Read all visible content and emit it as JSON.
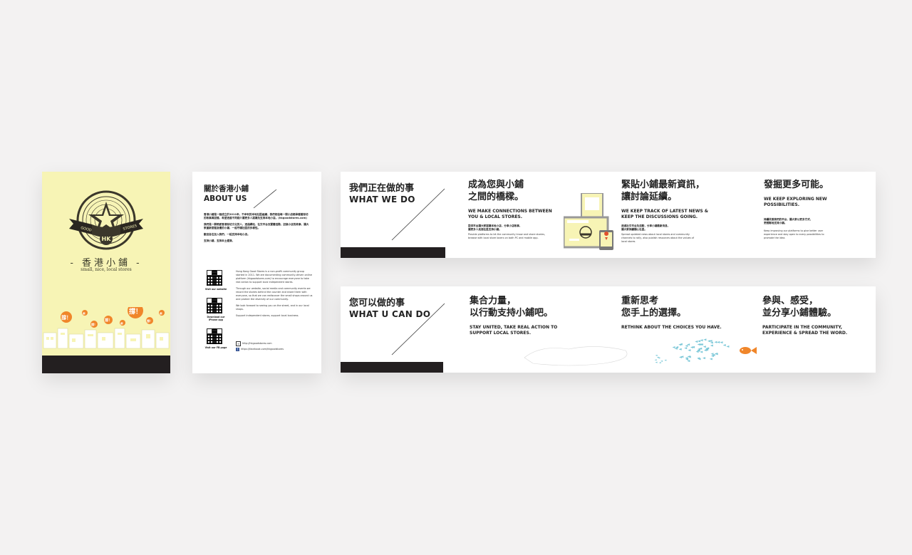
{
  "cover": {
    "emblem_text_left": "GOOD",
    "emblem_text_right": "STORES",
    "emblem_center": "HK",
    "name_zh": "- 香港小鋪 -",
    "name_en": "small, nice, local stores",
    "bubbles": [
      "撐！",
      "撐！",
      "撐！",
      "撐！",
      "撐！",
      "撐！",
      "撐！",
      "撐！"
    ]
  },
  "about": {
    "title_zh": "關於香港小鋪",
    "title_en": "ABOUT US",
    "zh_paragraphs": [
      "香港小鋪是一個成立於2011年，不牟利的本地社區組織，我們相信每一間小店都承載着街坊的故事與回憶，希望透過不同媒介讓更多人認識及支持本地小店。(hkgoodstores.com)",
      "我們是一群熱愛香港街坊文化的人，透過網站、社交平台及實體活動，記錄小店的故事，讓大家重新發掘身邊的小鋪，一起守護社區的多樣性。",
      "歡迎各位加入我們，一起支持本地小店。",
      "支持小鋪，支持本土經濟。"
    ],
    "en_paragraphs": [
      "Hong Kong Good Stores is a non-profit community group started in 2011. We are documenting community-driven online platform (hkgoodstores.com) to encourage everyone to take real action to support local independent stores.",
      "Through our website, social media and community events we record the stories behind the counter and share them with everyone, so that we can rediscover the small shops around us and protect the diversity of our community.",
      "We look forward to seeing you on the street, and in our local shops.",
      "Support independent stores, support local business."
    ],
    "qr_captions": [
      "Visit our website",
      "Download our iPhone app",
      "Visit our FB page"
    ],
    "links": [
      "http://hkgoodstores.com",
      "https://facebook.com/hkgoodstores"
    ]
  },
  "strip1": {
    "label_zh": "我們正在做的事",
    "label_en": "WHAT WE DO",
    "columns": [
      {
        "heading": [
          "成為您與小鋪",
          "之間的橋樑。"
        ],
        "sub": [
          "WE MAKE CONNECTIONS BETWEEN",
          "YOU & LOCAL STORES."
        ],
        "text_zh": [
          "提供平台讓大家認識本地小店，分享小店故事，",
          "讓更多人走進社區支持小鋪。"
        ],
        "text_en": [
          "Provide platforms to let the community know and share stories,",
          "browse with local store lovers on both PC and mobile app."
        ]
      },
      {
        "heading": [
          "緊貼小鋪最新資訊，",
          "讓討論延續。"
        ],
        "sub": [
          "WE KEEP TRACK OF LATEST NEWS &",
          "KEEP THE DISCUSSIONS GOING."
        ],
        "text_zh": [
          "透過社交平台及活動，分享小鋪最新消息，",
          "讓大家持續關心社區。"
        ],
        "text_en": [
          "Spread updated news about local stores and community",
          "channels to rally, also publish resources about the values of",
          "local stores."
        ]
      },
      {
        "heading": [
          "發掘更多可能。"
        ],
        "sub": [
          "WE KEEP EXPLORING NEW",
          "POSSIBILITIES."
        ],
        "text_zh": [
          "持續改善我們的平台，讓大家以更多方式，",
          "更輕鬆地支持小鋪。"
        ],
        "text_en": [
          "Keep improving our platforms to give better user",
          "experience and stay open to every possibilities to",
          "promote the idea."
        ]
      }
    ]
  },
  "strip2": {
    "label_zh": "您可以做的事",
    "label_en": "WHAT U CAN DO",
    "columns": [
      {
        "heading": [
          "集合力量，",
          "以行動支持小鋪吧。"
        ],
        "sub": [
          "STAY UNITED, TAKE REAL ACTION TO",
          "SUPPORT LOCAL STORES."
        ]
      },
      {
        "heading": [
          "重新思考",
          "您手上的選擇。"
        ],
        "sub": [
          "RETHINK ABOUT THE CHOICES YOU HAVE."
        ]
      },
      {
        "heading": [
          "參與、感受，",
          "並分享小鋪體驗。"
        ],
        "sub": [
          "PARTICIPATE IN THE COMMUNITY,",
          "EXPERIENCE & SPREAD THE WORD."
        ]
      }
    ]
  },
  "colors": {
    "cream": "#f7f4b5",
    "dark": "#231f20",
    "orange": "#f0862a",
    "fish_blue": "#7cc8d8",
    "background": "#f3f2f2"
  }
}
